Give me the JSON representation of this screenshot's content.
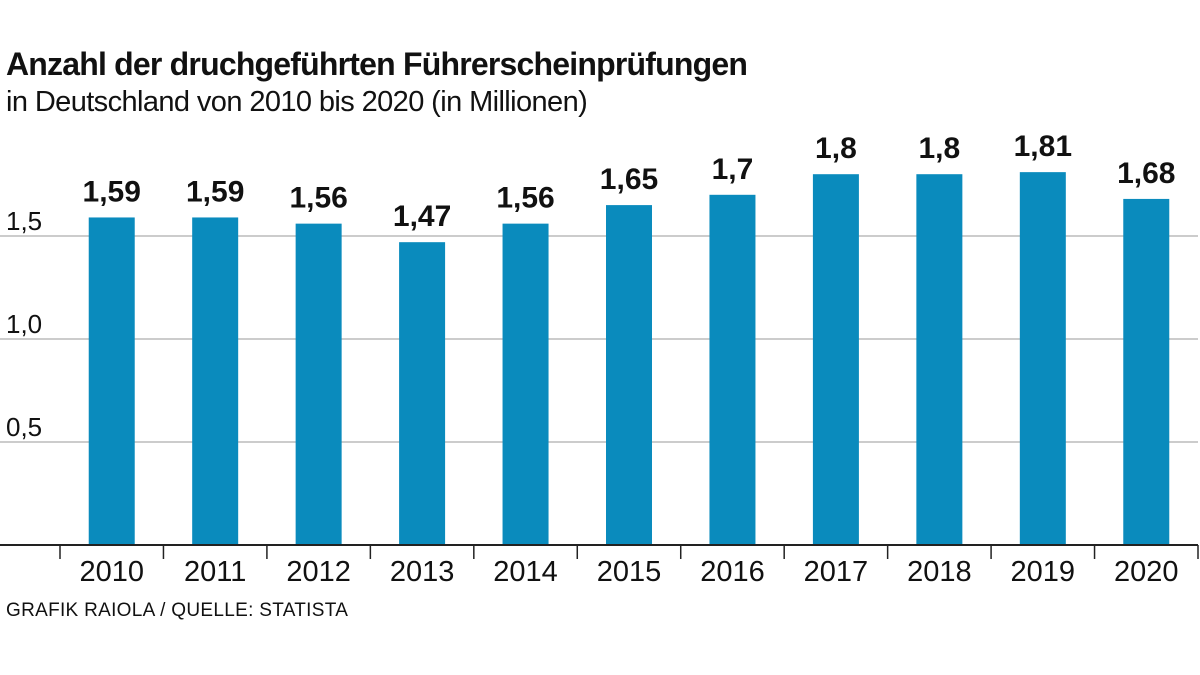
{
  "header": {
    "title": "Anzahl der druchgeführten Führerscheinprüfungen",
    "subtitle": "in Deutschland von 2010 bis 2020 (in Millionen)"
  },
  "footer": {
    "source": "GRAFIK RAIOLA / QUELLE: STATISTA"
  },
  "colors": {
    "bar": "#0a8bbd",
    "grid": "#9a9a9a",
    "axis": "#222222"
  },
  "chart_data": {
    "type": "bar",
    "title": "Anzahl der druchgeführten Führerscheinprüfungen",
    "subtitle": "in Deutschland von 2010 bis 2020 (in Millionen)",
    "xlabel": "",
    "ylabel": "",
    "categories": [
      "2010",
      "2011",
      "2012",
      "2013",
      "2014",
      "2015",
      "2016",
      "2017",
      "2018",
      "2019",
      "2020"
    ],
    "values": [
      1.59,
      1.59,
      1.56,
      1.47,
      1.56,
      1.65,
      1.7,
      1.8,
      1.8,
      1.81,
      1.68
    ],
    "value_labels": [
      "1,59",
      "1,59",
      "1,56",
      "1,47",
      "1,56",
      "1,65",
      "1,7",
      "1,8",
      "1,8",
      "1,81",
      "1,68"
    ],
    "yticks": [
      0.5,
      1.0,
      1.5
    ],
    "ytick_labels": [
      "0,5",
      "1,0",
      "1,5"
    ],
    "ylim": [
      0,
      2.0
    ],
    "grid": true,
    "legend": "none"
  }
}
